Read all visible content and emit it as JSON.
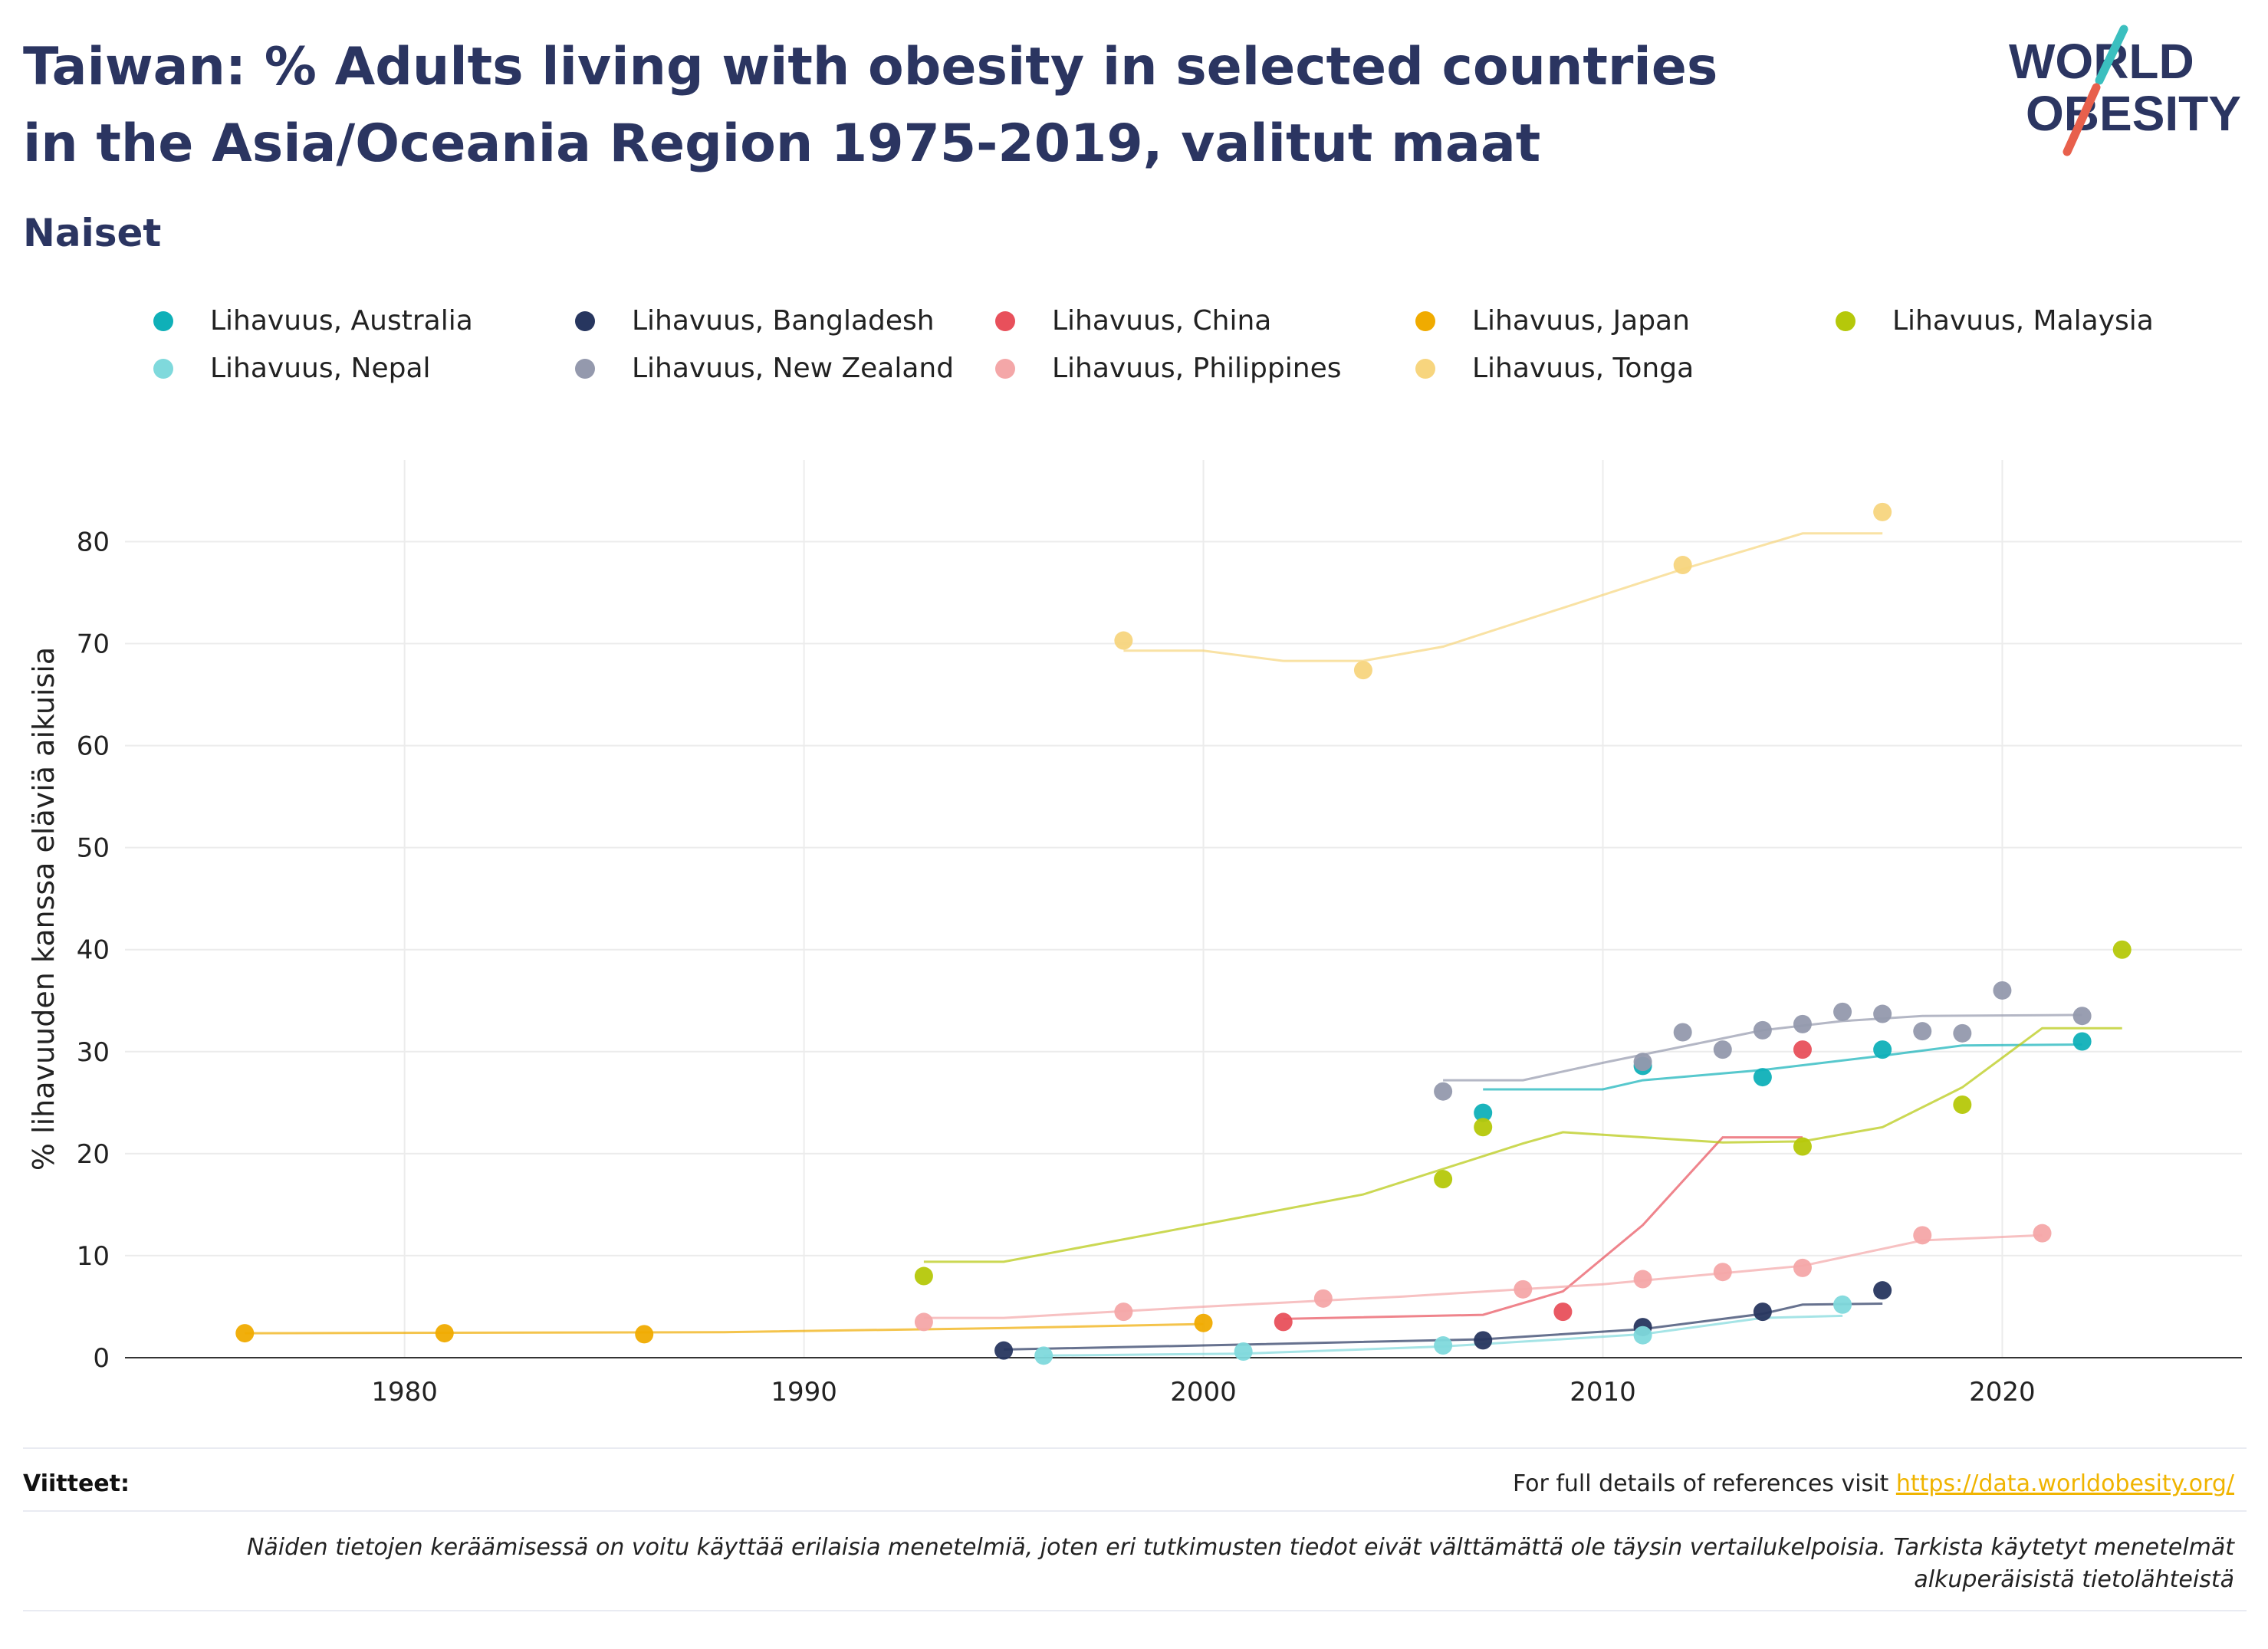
{
  "header": {
    "title": "Taiwan: % Adults living with obesity in selected countries in the Asia/Oceania Region 1975-2019, valitut maat",
    "subtitle": "Naiset"
  },
  "logo": {
    "line1": "WORLD",
    "line2": "OBESITY",
    "accent_colors": [
      "#3bbfbf",
      "#e8604c"
    ]
  },
  "legend": [
    {
      "label": "Lihavuus, Australia",
      "color": "#0fb0b8"
    },
    {
      "label": "Lihavuus, Bangladesh",
      "color": "#27365f"
    },
    {
      "label": "Lihavuus, China",
      "color": "#e8505b"
    },
    {
      "label": "Lihavuus, Japan",
      "color": "#f0ab00"
    },
    {
      "label": "Lihavuus, Malaysia",
      "color": "#b5c80a"
    },
    {
      "label": "Lihavuus, Nepal",
      "color": "#7fd9dc"
    },
    {
      "label": "Lihavuus, New Zealand",
      "color": "#9499ad"
    },
    {
      "label": "Lihavuus, Philippines",
      "color": "#f4a7a8"
    },
    {
      "label": "Lihavuus, Tonga",
      "color": "#f7d57e"
    }
  ],
  "chart_data": {
    "type": "scatter",
    "ylabel": "% lihavuuden kanssa eläviä aikuisia",
    "xlabel": "",
    "xlim": [
      1973,
      2026
    ],
    "ylim": [
      0,
      88
    ],
    "xticks": [
      1980,
      1990,
      2000,
      2010,
      2020
    ],
    "yticks": [
      0,
      10,
      20,
      30,
      40,
      50,
      60,
      70,
      80
    ],
    "grid": true,
    "series": [
      {
        "name": "Lihavuus, Australia",
        "color": "#0fb0b8",
        "points": [
          [
            2007,
            24.0
          ],
          [
            2011,
            28.6
          ],
          [
            2014,
            27.5
          ],
          [
            2017,
            30.2
          ],
          [
            2022,
            31.0
          ]
        ],
        "trend": [
          [
            2007,
            26.3
          ],
          [
            2010,
            26.3
          ],
          [
            2011,
            27.2
          ],
          [
            2014,
            28.2
          ],
          [
            2017,
            29.6
          ],
          [
            2019,
            30.6
          ],
          [
            2022,
            30.7
          ]
        ]
      },
      {
        "name": "Lihavuus, Bangladesh",
        "color": "#27365f",
        "points": [
          [
            1995,
            0.7
          ],
          [
            2007,
            1.7
          ],
          [
            2011,
            3.0
          ],
          [
            2014,
            4.5
          ],
          [
            2017,
            6.6
          ]
        ],
        "trend": [
          [
            1995,
            0.8
          ],
          [
            2000,
            1.2
          ],
          [
            2007,
            1.8
          ],
          [
            2011,
            2.8
          ],
          [
            2014,
            4.3
          ],
          [
            2015,
            5.2
          ],
          [
            2017,
            5.3
          ]
        ]
      },
      {
        "name": "Lihavuus, China",
        "color": "#e8505b",
        "points": [
          [
            2002,
            3.5
          ],
          [
            2009,
            4.5
          ],
          [
            2015,
            30.2
          ]
        ],
        "trend": [
          [
            2002,
            3.8
          ],
          [
            2007,
            4.2
          ],
          [
            2009,
            6.5
          ],
          [
            2011,
            13.0
          ],
          [
            2013,
            21.6
          ],
          [
            2015,
            21.6
          ]
        ]
      },
      {
        "name": "Lihavuus, Japan",
        "color": "#f0ab00",
        "points": [
          [
            1976,
            2.4
          ],
          [
            1981,
            2.4
          ],
          [
            1986,
            2.3
          ],
          [
            2000,
            3.4
          ]
        ],
        "trend": [
          [
            1976,
            2.4
          ],
          [
            1988,
            2.5
          ],
          [
            1995,
            2.9
          ],
          [
            2000,
            3.3
          ]
        ]
      },
      {
        "name": "Lihavuus, Malaysia",
        "color": "#b5c80a",
        "points": [
          [
            1993,
            8.0
          ],
          [
            2006,
            17.5
          ],
          [
            2007,
            22.6
          ],
          [
            2015,
            20.7
          ],
          [
            2019,
            24.8
          ],
          [
            2023,
            40.0
          ]
        ],
        "trend": [
          [
            1993,
            9.4
          ],
          [
            1995,
            9.4
          ],
          [
            2004,
            16.0
          ],
          [
            2008,
            21.0
          ],
          [
            2009,
            22.1
          ],
          [
            2013,
            21.1
          ],
          [
            2015,
            21.2
          ],
          [
            2017,
            22.6
          ],
          [
            2019,
            26.5
          ],
          [
            2021,
            32.3
          ],
          [
            2023,
            32.3
          ]
        ]
      },
      {
        "name": "Lihavuus, Nepal",
        "color": "#7fd9dc",
        "points": [
          [
            1996,
            0.2
          ],
          [
            2001,
            0.6
          ],
          [
            2006,
            1.2
          ],
          [
            2011,
            2.2
          ],
          [
            2016,
            5.2
          ]
        ],
        "trend": [
          [
            1996,
            0.2
          ],
          [
            2001,
            0.4
          ],
          [
            2006,
            1.1
          ],
          [
            2011,
            2.3
          ],
          [
            2014,
            3.9
          ],
          [
            2016,
            4.1
          ]
        ]
      },
      {
        "name": "Lihavuus, New Zealand",
        "color": "#9499ad",
        "points": [
          [
            2006,
            26.1
          ],
          [
            2011,
            29.0
          ],
          [
            2012,
            31.9
          ],
          [
            2013,
            30.2
          ],
          [
            2014,
            32.1
          ],
          [
            2015,
            32.7
          ],
          [
            2016,
            33.9
          ],
          [
            2017,
            33.7
          ],
          [
            2018,
            32.0
          ],
          [
            2019,
            31.8
          ],
          [
            2020,
            36.0
          ],
          [
            2022,
            33.5
          ]
        ],
        "trend": [
          [
            2006,
            27.2
          ],
          [
            2008,
            27.2
          ],
          [
            2010,
            28.9
          ],
          [
            2012,
            30.5
          ],
          [
            2014,
            32.1
          ],
          [
            2016,
            33.0
          ],
          [
            2018,
            33.5
          ],
          [
            2022,
            33.6
          ]
        ]
      },
      {
        "name": "Lihavuus, Philippines",
        "color": "#f4a7a8",
        "points": [
          [
            1993,
            3.5
          ],
          [
            1998,
            4.5
          ],
          [
            2003,
            5.8
          ],
          [
            2008,
            6.7
          ],
          [
            2011,
            7.7
          ],
          [
            2013,
            8.4
          ],
          [
            2015,
            8.8
          ],
          [
            2018,
            12.0
          ],
          [
            2021,
            12.2
          ]
        ],
        "trend": [
          [
            1993,
            3.9
          ],
          [
            1995,
            3.9
          ],
          [
            2000,
            5.0
          ],
          [
            2005,
            6.0
          ],
          [
            2010,
            7.2
          ],
          [
            2015,
            9.0
          ],
          [
            2018,
            11.5
          ],
          [
            2021,
            12.0
          ]
        ]
      },
      {
        "name": "Lihavuus, Tonga",
        "color": "#f7d57e",
        "points": [
          [
            1998,
            70.3
          ],
          [
            2004,
            67.4
          ],
          [
            2012,
            77.7
          ],
          [
            2017,
            82.9
          ]
        ],
        "trend": [
          [
            1998,
            69.3
          ],
          [
            2000,
            69.3
          ],
          [
            2002,
            68.3
          ],
          [
            2004,
            68.3
          ],
          [
            2006,
            69.7
          ],
          [
            2012,
            77.3
          ],
          [
            2015,
            80.8
          ],
          [
            2017,
            80.8
          ]
        ]
      }
    ]
  },
  "footer": {
    "refs_label": "Viitteet:",
    "refs_text": "For full details of references visit ",
    "refs_link": "https://data.worldobesity.org/",
    "note": "Näiden tietojen keräämisessä on voitu käyttää erilaisia menetelmiä, joten eri tutkimusten tiedot eivät välttämättä ole täysin vertailukelpoisia. Tarkista käytetyt menetelmät alkuperäisistä tietolähteistä"
  }
}
